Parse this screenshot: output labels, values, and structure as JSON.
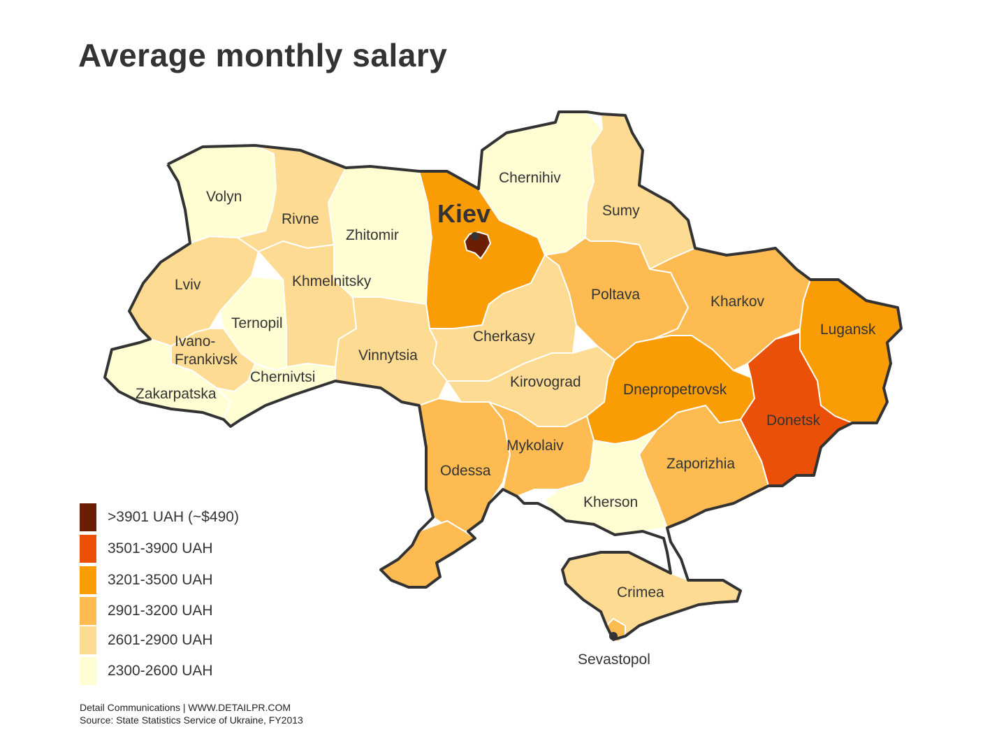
{
  "title": "Average monthly salary",
  "colors": {
    "tier_2300_2600": "#fffdd2",
    "tier_2601_2900": "#fedb92",
    "tier_2901_3200": "#fdbb52",
    "tier_3201_3500": "#fa9c04",
    "tier_3501_3900": "#ea5008",
    "tier_3901_plus": "#6b1e02",
    "border": "#333333"
  },
  "legend": [
    {
      "label": ">3901 UAH (~$490)",
      "color": "#6b1e02"
    },
    {
      "label": "3501-3900 UAH",
      "color": "#ea5008"
    },
    {
      "label": "3201-3500 UAH",
      "color": "#fa9c04"
    },
    {
      "label": "2901-3200 UAH",
      "color": "#fdbb52"
    },
    {
      "label": "2601-2900 UAH",
      "color": "#fedb92"
    },
    {
      "label": "2300-2600 UAH",
      "color": "#fffdd2"
    }
  ],
  "regions": {
    "volyn": "Volyn",
    "rivne": "Rivne",
    "zhitomir": "Zhitomir",
    "chernihiv": "Chernihiv",
    "sumy": "Sumy",
    "kiev": "Kiev",
    "lviv": "Lviv",
    "khmelnitsky": "Khmelnitsky",
    "ternopil": "Ternopil",
    "ivano_1": "Ivano-",
    "ivano_2": "Frankivsk",
    "zakarpatska": "Zakarpatska",
    "chernivtsi": "Chernivtsi",
    "vinnytsia": "Vinnytsia",
    "cherkasy": "Cherkasy",
    "poltava": "Poltava",
    "kharkov": "Kharkov",
    "lugansk": "Lugansk",
    "kirovograd": "Kirovograd",
    "dnepropetrovsk": "Dnepropetrovsk",
    "donetsk": "Donetsk",
    "odessa": "Odessa",
    "mykolaiv": "Mykolaiv",
    "zaporizhia": "Zaporizhia",
    "kherson": "Kherson",
    "crimea": "Crimea",
    "sevastopol": "Sevastopol"
  },
  "footer": {
    "line1": "Detail Communications | WWW.DETAILPR.COM",
    "line2": "Source: State Statistics Service of Ukraine, FY2013"
  }
}
